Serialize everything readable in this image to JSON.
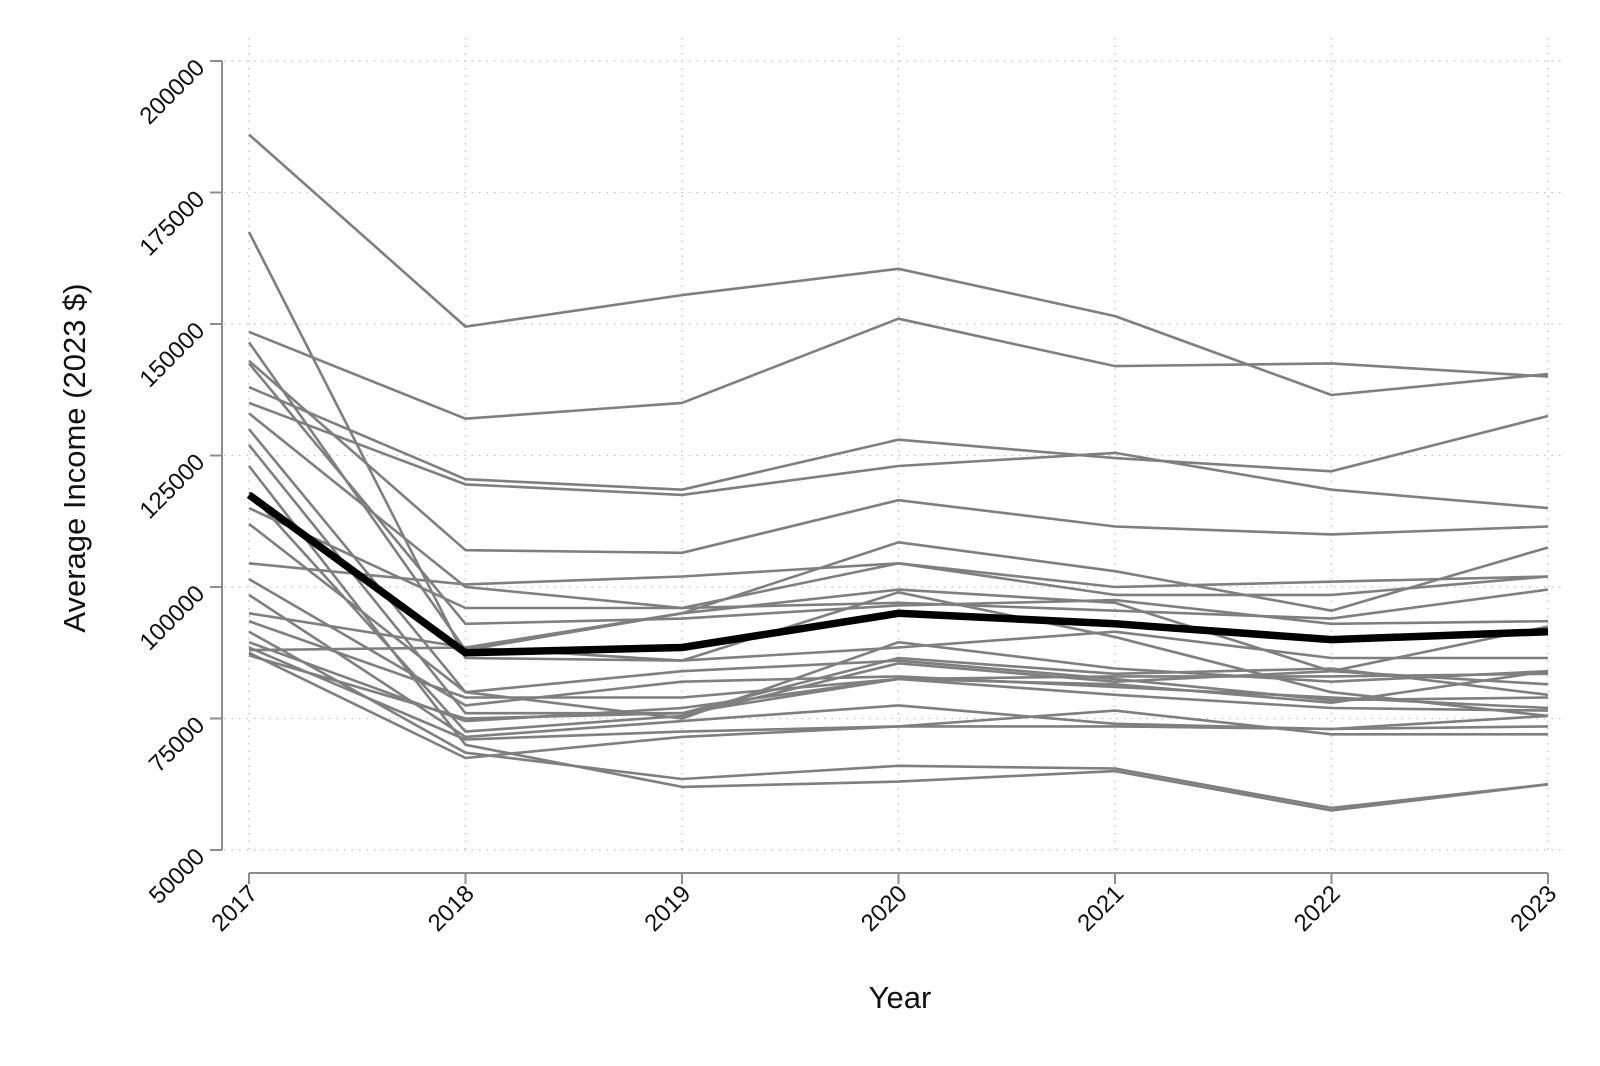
{
  "chart_data": {
    "type": "line",
    "title": "",
    "xlabel": "Year",
    "ylabel": "Average Income (2023 $)",
    "x": [
      "2017",
      "2018",
      "2019",
      "2020",
      "2021",
      "2022",
      "2023"
    ],
    "xlim": [
      2017,
      2023
    ],
    "ylim": [
      50000,
      200000
    ],
    "yticks": [
      50000,
      75000,
      100000,
      125000,
      150000,
      175000,
      200000
    ],
    "grid": true,
    "legend": "none",
    "colors": {
      "series": "#7f7f7f",
      "highlight": "#000000",
      "grid": "#bfbfbf",
      "axis": "#8c8c8c"
    },
    "series": [
      {
        "values": [
          186000,
          149500,
          155500,
          160500,
          151500,
          136500,
          140500
        ]
      },
      {
        "values": [
          167500,
          86500,
          86000,
          99000,
          90500,
          80000,
          75500
        ]
      },
      {
        "values": [
          148500,
          132000,
          135000,
          151000,
          142000,
          142500,
          140000
        ]
      },
      {
        "values": [
          146500,
          88000,
          95000,
          99500,
          97000,
          84000,
          81500
        ]
      },
      {
        "values": [
          143000,
          107000,
          106500,
          116500,
          111500,
          110000,
          111500
        ]
      },
      {
        "values": [
          142500,
          93000,
          94000,
          96500,
          97500,
          93000,
          93500
        ]
      },
      {
        "values": [
          138000,
          120500,
          118500,
          128000,
          124500,
          122000,
          132500
        ]
      },
      {
        "values": [
          135000,
          119500,
          117500,
          123000,
          125500,
          118500,
          115000
        ]
      },
      {
        "values": [
          133000,
          100000,
          96000,
          104500,
          98500,
          98500,
          102000
        ]
      },
      {
        "values": [
          130000,
          80000,
          75000,
          89500,
          84500,
          82000,
          84000
        ]
      },
      {
        "values": [
          127000,
          76000,
          76000,
          82500,
          83000,
          83000,
          83500
        ]
      },
      {
        "values": [
          123000,
          70000,
          62000,
          63000,
          65000,
          57500,
          62500
        ]
      },
      {
        "values": [
          118000,
          72500,
          75500,
          85500,
          82000,
          84000,
          92500
        ]
      },
      {
        "values": [
          115000,
          96000,
          96000,
          97000,
          95500,
          94000,
          99500
        ]
      },
      {
        "values": [
          112000,
          80000,
          84000,
          86000,
          82500,
          78500,
          79000
        ]
      },
      {
        "values": [
          104500,
          100500,
          102000,
          104500,
          100000,
          101000,
          102000
        ]
      },
      {
        "values": [
          101500,
          77500,
          82000,
          83000,
          81000,
          79000,
          77000
        ]
      },
      {
        "values": [
          98500,
          71500,
          74500,
          77500,
          74000,
          73000,
          75500
        ]
      },
      {
        "values": [
          95000,
          88500,
          95000,
          108500,
          103000,
          95500,
          107500
        ]
      },
      {
        "values": [
          93500,
          79000,
          79000,
          82500,
          81500,
          78000,
          84000
        ]
      },
      {
        "values": [
          91500,
          68500,
          63500,
          66000,
          65500,
          58000,
          62500
        ]
      },
      {
        "values": [
          89500,
          74500,
          77000,
          82500,
          79500,
          77000,
          76500
        ]
      },
      {
        "values": [
          88500,
          71000,
          72500,
          73500,
          76500,
          72000,
          72000
        ]
      },
      {
        "values": [
          88000,
          88500,
          86000,
          88500,
          91500,
          86500,
          86500
        ]
      },
      {
        "values": [
          87500,
          67500,
          71500,
          73500,
          73500,
          73000,
          73500
        ]
      },
      {
        "values": [
          87000,
          75000,
          76000,
          86500,
          83500,
          84500,
          79500
        ]
      }
    ],
    "highlight": {
      "values": [
        117500,
        87500,
        88500,
        95000,
        93000,
        90000,
        91500
      ]
    }
  }
}
